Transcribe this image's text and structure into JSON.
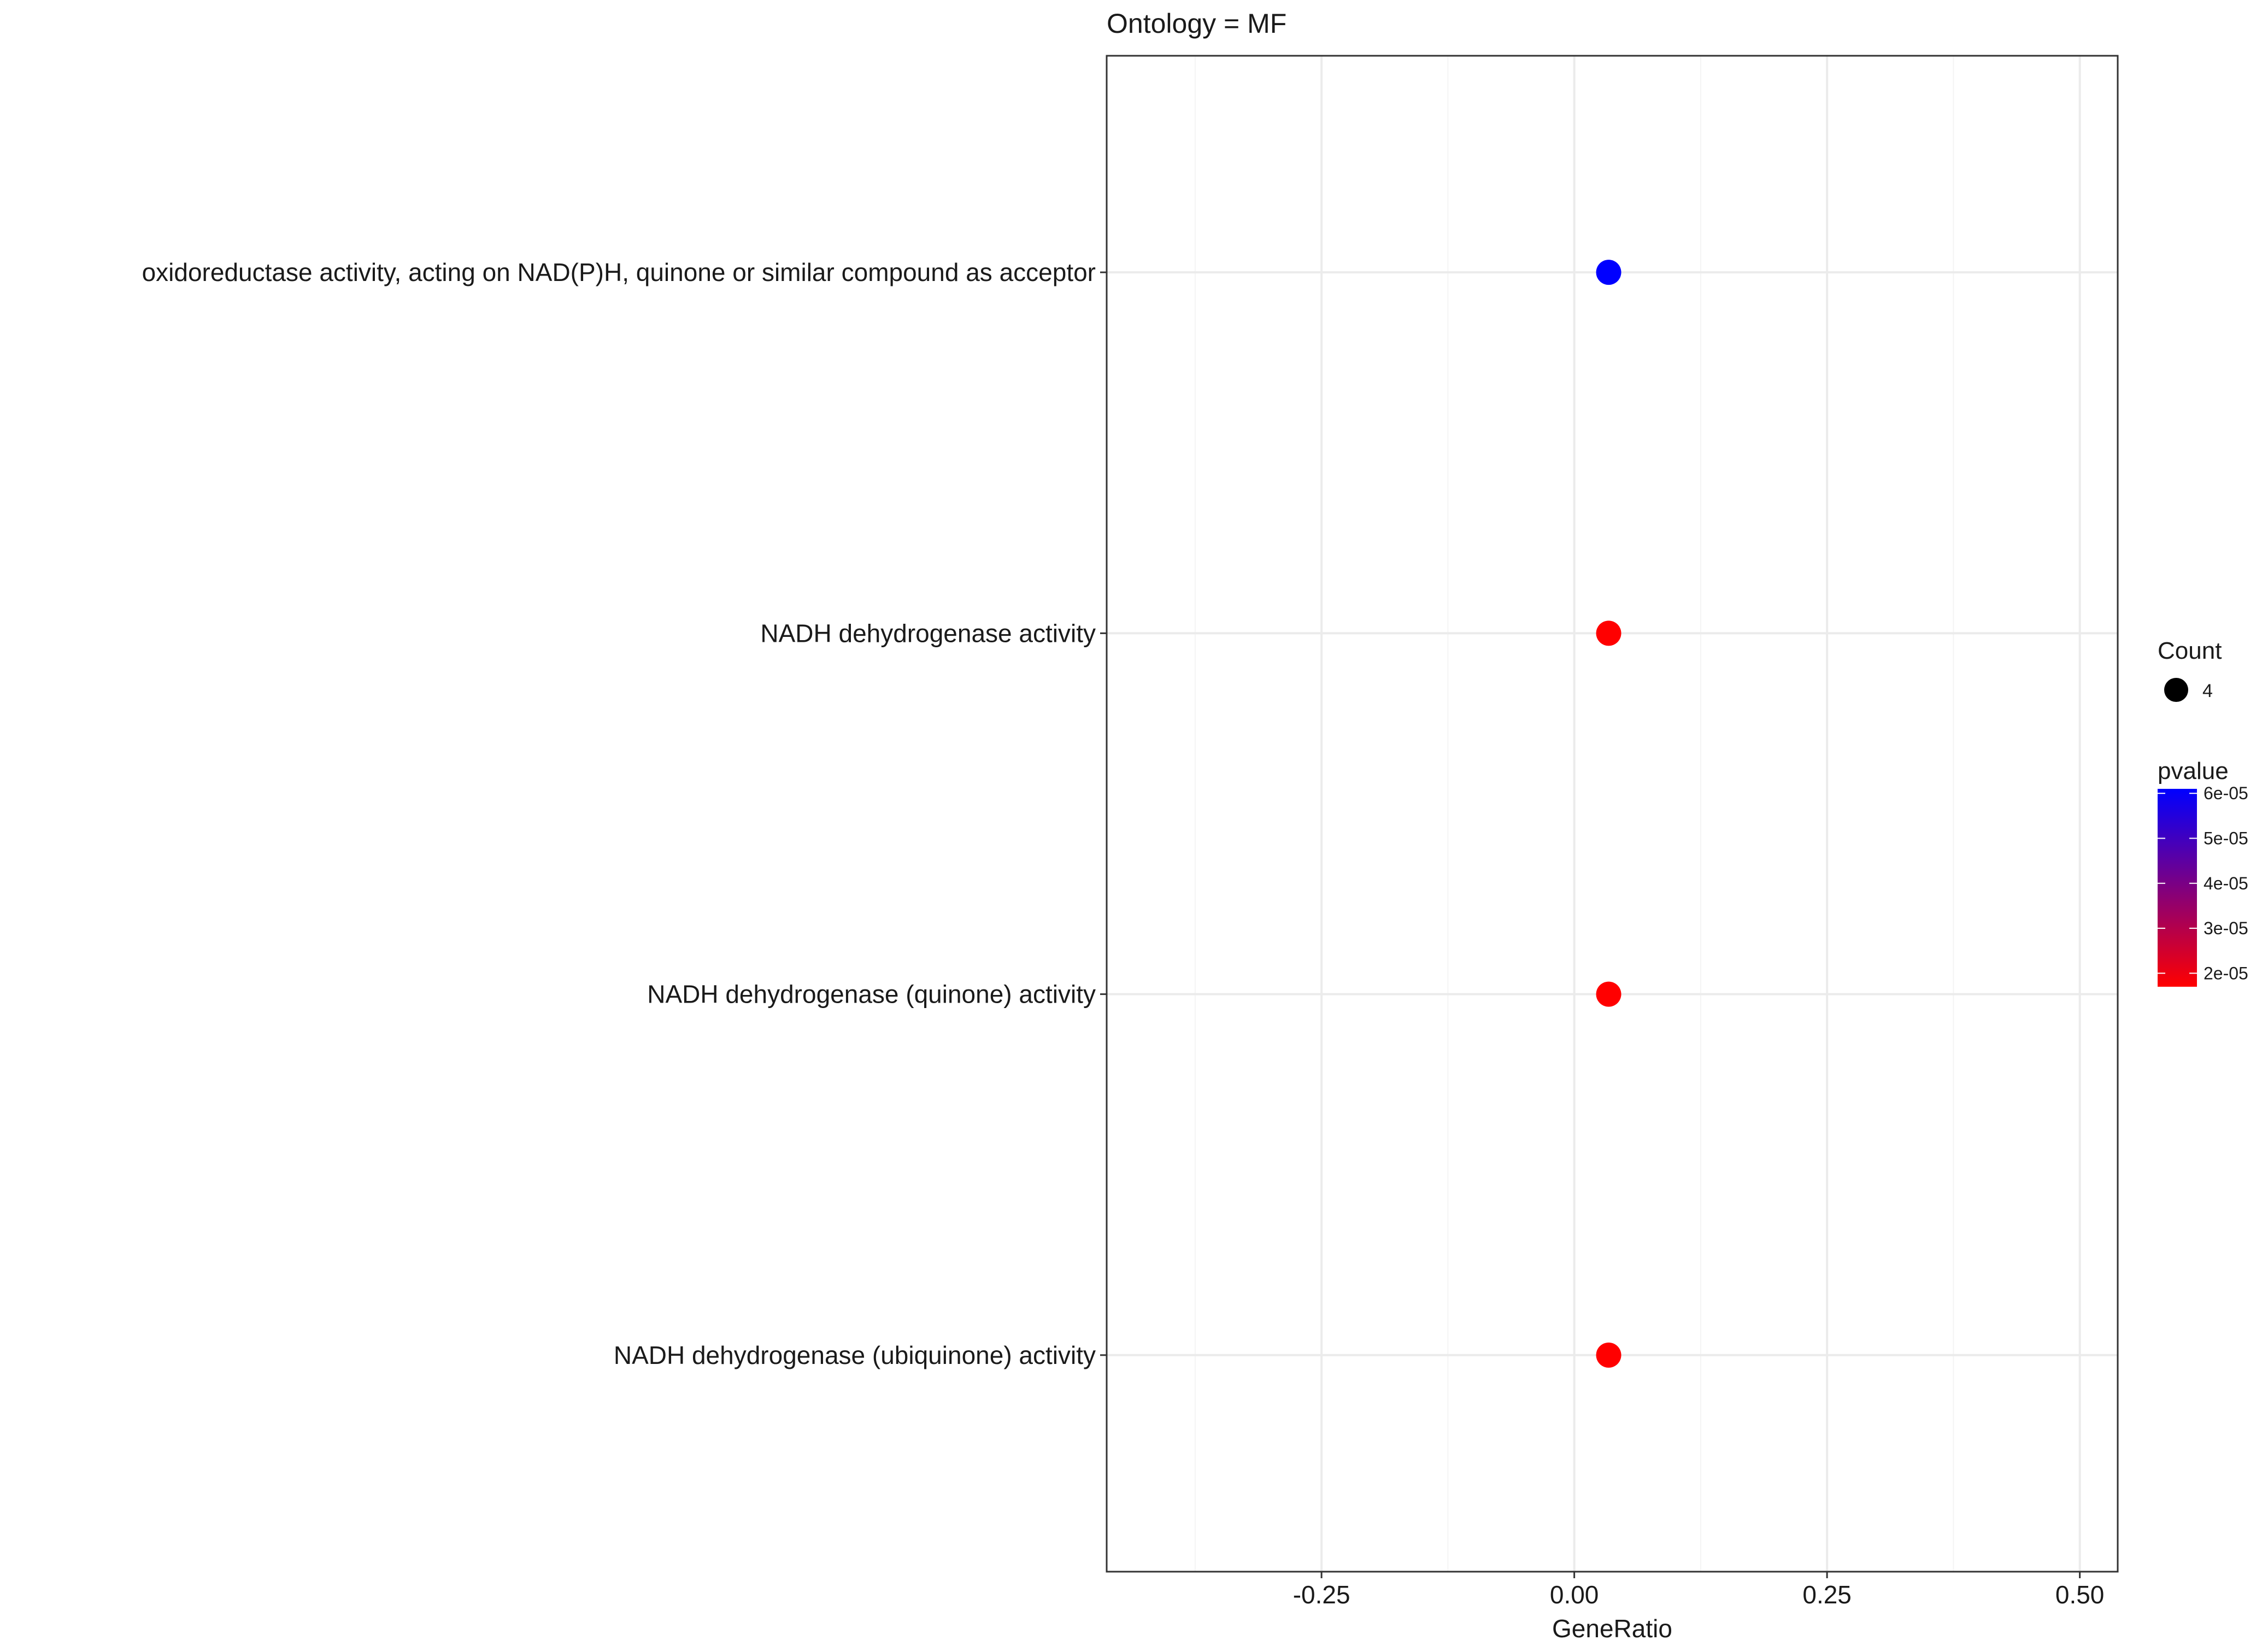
{
  "chart_data": {
    "type": "scatter",
    "title": "Ontology = MF",
    "xlabel": "GeneRatio",
    "ylabel": "",
    "xlim": [
      -0.4625,
      0.5375
    ],
    "x_ticks": [
      -0.25,
      0.0,
      0.25,
      0.5
    ],
    "x_tick_labels": [
      "-0.25",
      "0.00",
      "0.25",
      "0.50"
    ],
    "x_minor_ticks": [
      -0.375,
      -0.125,
      0.125,
      0.375
    ],
    "categories": [
      "oxidoreductase activity, acting on NAD(P)H, quinone or similar compound as acceptor",
      "NADH dehydrogenase activity",
      "NADH dehydrogenase (quinone) activity",
      "NADH dehydrogenase (ubiquinone) activity"
    ],
    "points": [
      {
        "category": "oxidoreductase activity, acting on NAD(P)H, quinone or similar compound as acceptor",
        "x": 0.034,
        "count": 4,
        "pvalue": 6.1e-05
      },
      {
        "category": "NADH dehydrogenase activity",
        "x": 0.034,
        "count": 4,
        "pvalue": 1.7e-05
      },
      {
        "category": "NADH dehydrogenase (quinone) activity",
        "x": 0.034,
        "count": 4,
        "pvalue": 1.7e-05
      },
      {
        "category": "NADH dehydrogenase (ubiquinone) activity",
        "x": 0.034,
        "count": 4,
        "pvalue": 1.7e-05
      }
    ],
    "grid": true,
    "legend": {
      "placement": "right",
      "size": {
        "title": "Count",
        "entries": [
          {
            "label": "4",
            "value": 4
          }
        ]
      },
      "color": {
        "title": "pvalue",
        "range": [
          1.7e-05,
          6.1e-05
        ],
        "ticks": [
          6e-05,
          5e-05,
          4e-05,
          3e-05,
          2e-05
        ],
        "tick_labels": [
          "6e-05",
          "5e-05",
          "4e-05",
          "3e-05",
          "2e-05"
        ],
        "low_color": "#ff0000",
        "high_color": "#0000ff"
      }
    },
    "colors": {
      "panel_border": "#333333",
      "grid_major": "#ebebeb",
      "grid_minor": "#f4f4f4",
      "text": "#1a1a1a"
    }
  }
}
